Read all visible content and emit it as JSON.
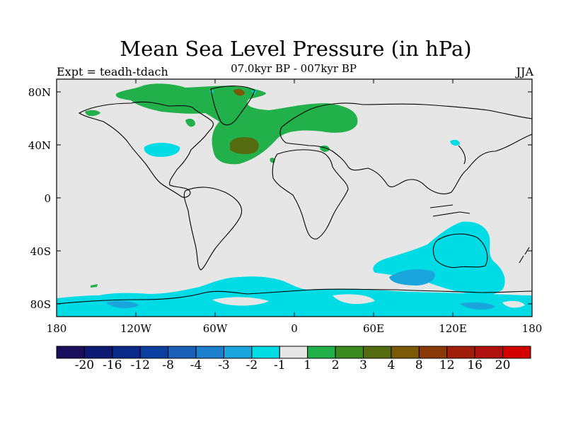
{
  "title": "Mean Sea Level Pressure (in hPa)",
  "left_label": "Expt = teadh-tdach",
  "center_label": "07.0kyr BP - 007kyr BP",
  "right_label": "JJA",
  "lat_labels": [
    "80N",
    "40N",
    "0",
    "40S",
    "80S"
  ],
  "lon_labels": [
    "180",
    "120W",
    "60W",
    "0",
    "60E",
    "120E",
    "180"
  ],
  "colorbar": {
    "labels": [
      "-20",
      "-16",
      "-12",
      "-8",
      "-4",
      "-3",
      "-2",
      "-1",
      "1",
      "2",
      "3",
      "4",
      "8",
      "12",
      "16",
      "20"
    ],
    "colors": [
      "#1a0f5c",
      "#0d1a73",
      "#0a2a8a",
      "#0a3fa0",
      "#1a60b8",
      "#1f7fcf",
      "#1aa6dc",
      "#00dce6",
      "#e6e6e6",
      "#22b04b",
      "#3a8a20",
      "#556b10",
      "#7a5a08",
      "#8a3a08",
      "#a01e0a",
      "#b01010",
      "#d40000"
    ]
  },
  "colors": {
    "background": "#e6e6e6",
    "positive_small": "#22b04b",
    "positive_mid": "#556b10",
    "negative_small": "#00dce6",
    "negative_mid": "#1aa6dc"
  }
}
